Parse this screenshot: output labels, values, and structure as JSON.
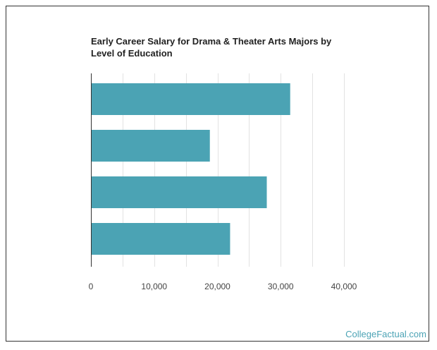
{
  "chart_data": {
    "type": "bar",
    "orientation": "horizontal",
    "title": "Early Career Salary for Drama & Theater Arts Majors by Level of Education",
    "categories": [
      "",
      "",
      "",
      ""
    ],
    "values": [
      31500,
      18800,
      27800,
      22000
    ],
    "xlim": [
      0,
      40000
    ],
    "xticks": [
      0,
      10000,
      20000,
      30000,
      40000
    ],
    "xtick_labels": [
      "0",
      "10,000",
      "20,000",
      "30,000",
      "40,000"
    ],
    "xlabel": "",
    "ylabel": "",
    "grid": true,
    "legend": "none"
  },
  "colors": {
    "bar": "#4ba3b4",
    "grid": "#e2e2e2",
    "axis": "#333333"
  },
  "credit": "CollegeFactual.com"
}
